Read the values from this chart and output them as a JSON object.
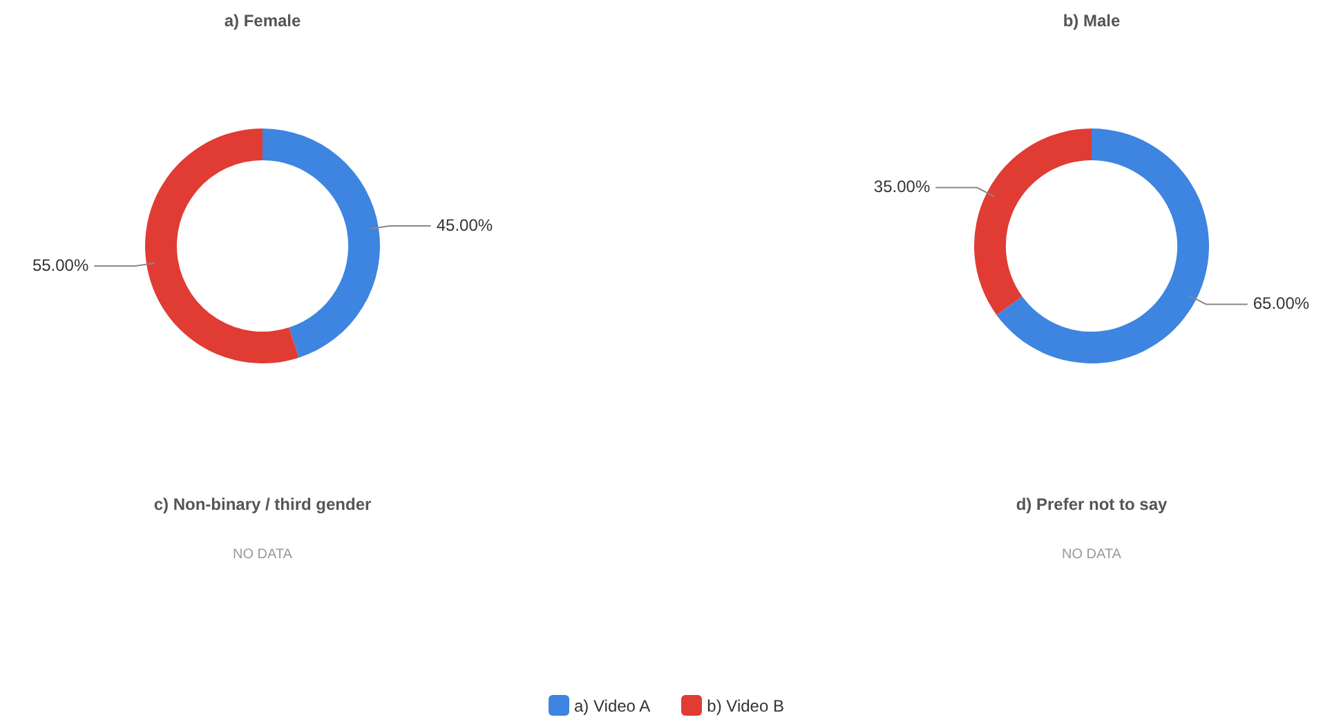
{
  "chart_data": [
    {
      "type": "donut",
      "title": "a) Female",
      "categories": [
        "a) Video A",
        "b) Video B"
      ],
      "values": [
        45,
        55
      ],
      "colors": [
        "#3d85e0",
        "#e03c34"
      ],
      "value_labels": [
        "45.00%",
        "55.00%"
      ],
      "legend": "bottom"
    },
    {
      "type": "donut",
      "title": "b) Male",
      "categories": [
        null,
        null
      ],
      "values": [
        65,
        35
      ],
      "colors": [
        "#3d85e0",
        "#e03c34"
      ],
      "value_labels": [
        "65.00%",
        "35.00%"
      ]
    },
    {
      "type": "other",
      "title": "c) Non-binary / third gender",
      "annotations": [
        "NO DATA"
      ]
    },
    {
      "type": "other",
      "title": "d) Prefer not to say",
      "annotations": [
        "NO DATA"
      ]
    }
  ]
}
